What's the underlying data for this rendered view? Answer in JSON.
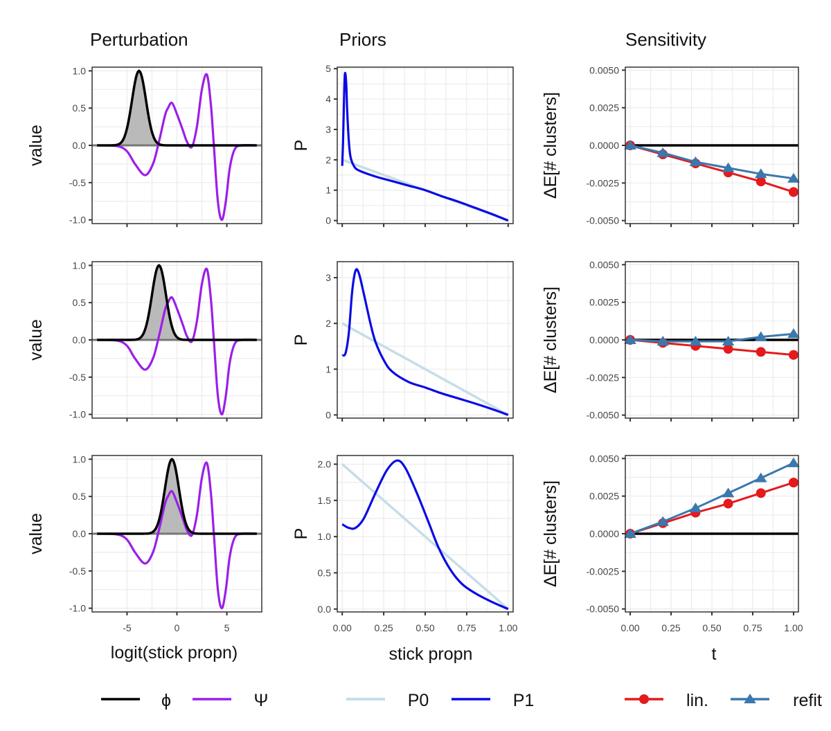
{
  "chart_data": {
    "type": "line",
    "layout": "3x3 grid of line panels",
    "column_titles": [
      "Perturbation",
      "Priors",
      "Sensitivity"
    ],
    "colors": {
      "phi": "#000000",
      "psi": "#9b1fe8",
      "P0": "#c6dde8",
      "P1": "#0a0ae6",
      "lin": "#e41a1c",
      "refit": "#3a78ad",
      "shade": "#b3b3b3"
    },
    "perturbation": {
      "ylabel": "value",
      "xlabel": "logit(stick propn)",
      "xlim": [
        -8.5,
        8.5
      ],
      "ylim": [
        -1.05,
        1.05
      ],
      "xticks": [
        -5,
        0,
        5
      ],
      "xtick_labels": [
        "-5",
        "0",
        "5"
      ],
      "yticks": [
        1.0,
        0.5,
        0.0,
        -0.5,
        -1.0
      ],
      "ytick_labels": [
        "1.0",
        "0.5",
        "0.0",
        "-0.5",
        "-1.0"
      ],
      "psi_description": "fixed wiggly function: min -0.4 at x≈-3.2, bump 0.57 at x≈-0.5, dip ~0 at x≈1.5, max 0.95 at x≈3, min -1.0 at x≈4.5",
      "psi_points": [
        [
          -8,
          0
        ],
        [
          -6,
          -0.01
        ],
        [
          -5,
          -0.08
        ],
        [
          -4.2,
          -0.25
        ],
        [
          -3.2,
          -0.4
        ],
        [
          -2.4,
          -0.25
        ],
        [
          -1.8,
          0.05
        ],
        [
          -1.2,
          0.4
        ],
        [
          -0.9,
          0.5
        ],
        [
          -0.5,
          0.57
        ],
        [
          0,
          0.42
        ],
        [
          0.6,
          0.2
        ],
        [
          1.0,
          0.05
        ],
        [
          1.5,
          -0.02
        ],
        [
          2.0,
          0.25
        ],
        [
          2.5,
          0.75
        ],
        [
          3.0,
          0.95
        ],
        [
          3.4,
          0.55
        ],
        [
          3.7,
          0.0
        ],
        [
          4.1,
          -0.75
        ],
        [
          4.5,
          -1.0
        ],
        [
          4.9,
          -0.75
        ],
        [
          5.3,
          -0.3
        ],
        [
          5.8,
          -0.05
        ],
        [
          6.5,
          0
        ],
        [
          8,
          0
        ]
      ],
      "rows": [
        {
          "phi_center": -3.8,
          "phi_height": 1.0,
          "phi_sd": 0.7
        },
        {
          "phi_center": -1.8,
          "phi_height": 1.0,
          "phi_sd": 0.7
        },
        {
          "phi_center": -0.5,
          "phi_height": 1.0,
          "phi_sd": 0.7
        }
      ]
    },
    "priors": {
      "ylabel": "P",
      "xlabel": "stick propn",
      "xlim": [
        -0.03,
        1.03
      ],
      "xticks": [
        0,
        0.25,
        0.5,
        0.75,
        1.0
      ],
      "xtick_labels": [
        "0.00",
        "0.25",
        "0.50",
        "0.75",
        "1.00"
      ],
      "P0_points": [
        [
          0,
          2.0
        ],
        [
          1.0,
          0.0
        ]
      ],
      "rows": [
        {
          "ylim": [
            -0.1,
            5.05
          ],
          "yticks": [
            0,
            1,
            2,
            3,
            4,
            5
          ],
          "ytick_labels": [
            "0",
            "1",
            "2",
            "3",
            "4",
            "5"
          ],
          "P1_points": [
            [
              0.0,
              1.8
            ],
            [
              0.005,
              2.6
            ],
            [
              0.01,
              3.8
            ],
            [
              0.015,
              4.75
            ],
            [
              0.02,
              4.8
            ],
            [
              0.025,
              4.4
            ],
            [
              0.03,
              3.6
            ],
            [
              0.04,
              2.6
            ],
            [
              0.05,
              2.1
            ],
            [
              0.07,
              1.8
            ],
            [
              0.1,
              1.65
            ],
            [
              0.2,
              1.45
            ],
            [
              0.3,
              1.3
            ],
            [
              0.4,
              1.15
            ],
            [
              0.5,
              1.0
            ],
            [
              0.6,
              0.8
            ],
            [
              0.7,
              0.62
            ],
            [
              0.8,
              0.42
            ],
            [
              0.9,
              0.22
            ],
            [
              1.0,
              0.0
            ]
          ]
        },
        {
          "ylim": [
            -0.07,
            3.35
          ],
          "yticks": [
            0,
            1,
            2,
            3
          ],
          "ytick_labels": [
            "0",
            "1",
            "2",
            "3"
          ],
          "P1_points": [
            [
              0.0,
              1.3
            ],
            [
              0.02,
              1.35
            ],
            [
              0.04,
              1.8
            ],
            [
              0.06,
              2.7
            ],
            [
              0.08,
              3.15
            ],
            [
              0.1,
              3.1
            ],
            [
              0.13,
              2.65
            ],
            [
              0.17,
              2.0
            ],
            [
              0.2,
              1.6
            ],
            [
              0.25,
              1.2
            ],
            [
              0.3,
              0.95
            ],
            [
              0.4,
              0.72
            ],
            [
              0.5,
              0.6
            ],
            [
              0.6,
              0.47
            ],
            [
              0.7,
              0.36
            ],
            [
              0.8,
              0.25
            ],
            [
              0.9,
              0.13
            ],
            [
              1.0,
              0.0
            ]
          ]
        },
        {
          "ylim": [
            -0.04,
            2.12
          ],
          "yticks": [
            0,
            0.5,
            1.0,
            1.5,
            2.0
          ],
          "ytick_labels": [
            "0.0",
            "0.5",
            "1.0",
            "1.5",
            "2.0"
          ],
          "P1_points": [
            [
              0.0,
              1.17
            ],
            [
              0.04,
              1.12
            ],
            [
              0.08,
              1.12
            ],
            [
              0.13,
              1.25
            ],
            [
              0.2,
              1.6
            ],
            [
              0.27,
              1.92
            ],
            [
              0.33,
              2.05
            ],
            [
              0.38,
              1.95
            ],
            [
              0.45,
              1.6
            ],
            [
              0.52,
              1.2
            ],
            [
              0.58,
              0.85
            ],
            [
              0.65,
              0.55
            ],
            [
              0.72,
              0.35
            ],
            [
              0.8,
              0.22
            ],
            [
              0.9,
              0.1
            ],
            [
              1.0,
              0.0
            ]
          ]
        }
      ]
    },
    "sensitivity": {
      "ylabel": "ΔE[# clusters]",
      "xlabel": "t",
      "xlim": [
        -0.03,
        1.03
      ],
      "ylim": [
        -0.0052,
        0.0052
      ],
      "xticks": [
        0,
        0.25,
        0.5,
        0.75,
        1.0
      ],
      "xtick_labels": [
        "0.00",
        "0.25",
        "0.50",
        "0.75",
        "1.00"
      ],
      "yticks": [
        0.005,
        0.0025,
        0.0,
        -0.0025,
        -0.005
      ],
      "ytick_labels": [
        "0.0050",
        "0.0025",
        "0.0000",
        "-0.0025",
        "-0.0050"
      ],
      "t": [
        0.0,
        0.2,
        0.4,
        0.6,
        0.8,
        1.0
      ],
      "rows": [
        {
          "lin": [
            0.0,
            -0.0006,
            -0.0012,
            -0.0018,
            -0.0024,
            -0.0031
          ],
          "refit": [
            0.0,
            -0.0005,
            -0.0011,
            -0.0015,
            -0.0019,
            -0.0022
          ]
        },
        {
          "lin": [
            0.0,
            -0.0002,
            -0.0004,
            -0.0006,
            -0.0008,
            -0.001
          ],
          "refit": [
            0.0,
            -0.0001,
            -0.0001,
            -0.0001,
            0.0002,
            0.0004
          ]
        },
        {
          "lin": [
            0.0,
            0.0007,
            0.0014,
            0.002,
            0.0027,
            0.0034
          ],
          "refit": [
            0.0,
            0.0008,
            0.0017,
            0.0027,
            0.0037,
            0.0047
          ]
        }
      ]
    },
    "legends": {
      "perturbation": [
        {
          "key": "phi",
          "label": "ϕ"
        },
        {
          "key": "psi",
          "label": "Ψ"
        }
      ],
      "priors": [
        {
          "key": "P0",
          "label": "P0"
        },
        {
          "key": "P1",
          "label": "P1"
        }
      ],
      "sensitivity": [
        {
          "key": "lin",
          "label": "lin."
        },
        {
          "key": "refit",
          "label": "refit"
        }
      ],
      "placement": "bottom"
    }
  }
}
